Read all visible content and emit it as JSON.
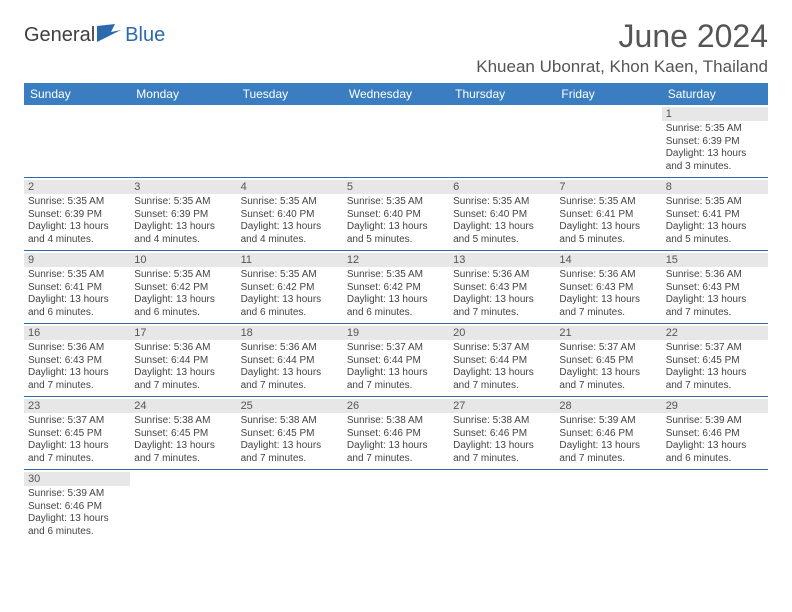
{
  "brand": {
    "dark": "General",
    "blue": "Blue"
  },
  "title": "June 2024",
  "location": "Khuean Ubonrat, Khon Kaen, Thailand",
  "colors": {
    "header_bg": "#3a7ec1",
    "header_text": "#ffffff",
    "daynum_bg": "#e7e7e7",
    "text": "#444444",
    "title_text": "#555555",
    "week_border": "#2b6aad"
  },
  "day_names": [
    "Sunday",
    "Monday",
    "Tuesday",
    "Wednesday",
    "Thursday",
    "Friday",
    "Saturday"
  ],
  "labels": {
    "sunrise": "Sunrise:",
    "sunset": "Sunset:",
    "daylight": "Daylight:"
  },
  "weeks": [
    [
      null,
      null,
      null,
      null,
      null,
      null,
      {
        "n": "1",
        "sr": "5:35 AM",
        "ss": "6:39 PM",
        "dl": "13 hours and 3 minutes."
      }
    ],
    [
      {
        "n": "2",
        "sr": "5:35 AM",
        "ss": "6:39 PM",
        "dl": "13 hours and 4 minutes."
      },
      {
        "n": "3",
        "sr": "5:35 AM",
        "ss": "6:39 PM",
        "dl": "13 hours and 4 minutes."
      },
      {
        "n": "4",
        "sr": "5:35 AM",
        "ss": "6:40 PM",
        "dl": "13 hours and 4 minutes."
      },
      {
        "n": "5",
        "sr": "5:35 AM",
        "ss": "6:40 PM",
        "dl": "13 hours and 5 minutes."
      },
      {
        "n": "6",
        "sr": "5:35 AM",
        "ss": "6:40 PM",
        "dl": "13 hours and 5 minutes."
      },
      {
        "n": "7",
        "sr": "5:35 AM",
        "ss": "6:41 PM",
        "dl": "13 hours and 5 minutes."
      },
      {
        "n": "8",
        "sr": "5:35 AM",
        "ss": "6:41 PM",
        "dl": "13 hours and 5 minutes."
      }
    ],
    [
      {
        "n": "9",
        "sr": "5:35 AM",
        "ss": "6:41 PM",
        "dl": "13 hours and 6 minutes."
      },
      {
        "n": "10",
        "sr": "5:35 AM",
        "ss": "6:42 PM",
        "dl": "13 hours and 6 minutes."
      },
      {
        "n": "11",
        "sr": "5:35 AM",
        "ss": "6:42 PM",
        "dl": "13 hours and 6 minutes."
      },
      {
        "n": "12",
        "sr": "5:35 AM",
        "ss": "6:42 PM",
        "dl": "13 hours and 6 minutes."
      },
      {
        "n": "13",
        "sr": "5:36 AM",
        "ss": "6:43 PM",
        "dl": "13 hours and 7 minutes."
      },
      {
        "n": "14",
        "sr": "5:36 AM",
        "ss": "6:43 PM",
        "dl": "13 hours and 7 minutes."
      },
      {
        "n": "15",
        "sr": "5:36 AM",
        "ss": "6:43 PM",
        "dl": "13 hours and 7 minutes."
      }
    ],
    [
      {
        "n": "16",
        "sr": "5:36 AM",
        "ss": "6:43 PM",
        "dl": "13 hours and 7 minutes."
      },
      {
        "n": "17",
        "sr": "5:36 AM",
        "ss": "6:44 PM",
        "dl": "13 hours and 7 minutes."
      },
      {
        "n": "18",
        "sr": "5:36 AM",
        "ss": "6:44 PM",
        "dl": "13 hours and 7 minutes."
      },
      {
        "n": "19",
        "sr": "5:37 AM",
        "ss": "6:44 PM",
        "dl": "13 hours and 7 minutes."
      },
      {
        "n": "20",
        "sr": "5:37 AM",
        "ss": "6:44 PM",
        "dl": "13 hours and 7 minutes."
      },
      {
        "n": "21",
        "sr": "5:37 AM",
        "ss": "6:45 PM",
        "dl": "13 hours and 7 minutes."
      },
      {
        "n": "22",
        "sr": "5:37 AM",
        "ss": "6:45 PM",
        "dl": "13 hours and 7 minutes."
      }
    ],
    [
      {
        "n": "23",
        "sr": "5:37 AM",
        "ss": "6:45 PM",
        "dl": "13 hours and 7 minutes."
      },
      {
        "n": "24",
        "sr": "5:38 AM",
        "ss": "6:45 PM",
        "dl": "13 hours and 7 minutes."
      },
      {
        "n": "25",
        "sr": "5:38 AM",
        "ss": "6:45 PM",
        "dl": "13 hours and 7 minutes."
      },
      {
        "n": "26",
        "sr": "5:38 AM",
        "ss": "6:46 PM",
        "dl": "13 hours and 7 minutes."
      },
      {
        "n": "27",
        "sr": "5:38 AM",
        "ss": "6:46 PM",
        "dl": "13 hours and 7 minutes."
      },
      {
        "n": "28",
        "sr": "5:39 AM",
        "ss": "6:46 PM",
        "dl": "13 hours and 7 minutes."
      },
      {
        "n": "29",
        "sr": "5:39 AM",
        "ss": "6:46 PM",
        "dl": "13 hours and 6 minutes."
      }
    ],
    [
      {
        "n": "30",
        "sr": "5:39 AM",
        "ss": "6:46 PM",
        "dl": "13 hours and 6 minutes."
      },
      null,
      null,
      null,
      null,
      null,
      null
    ]
  ]
}
